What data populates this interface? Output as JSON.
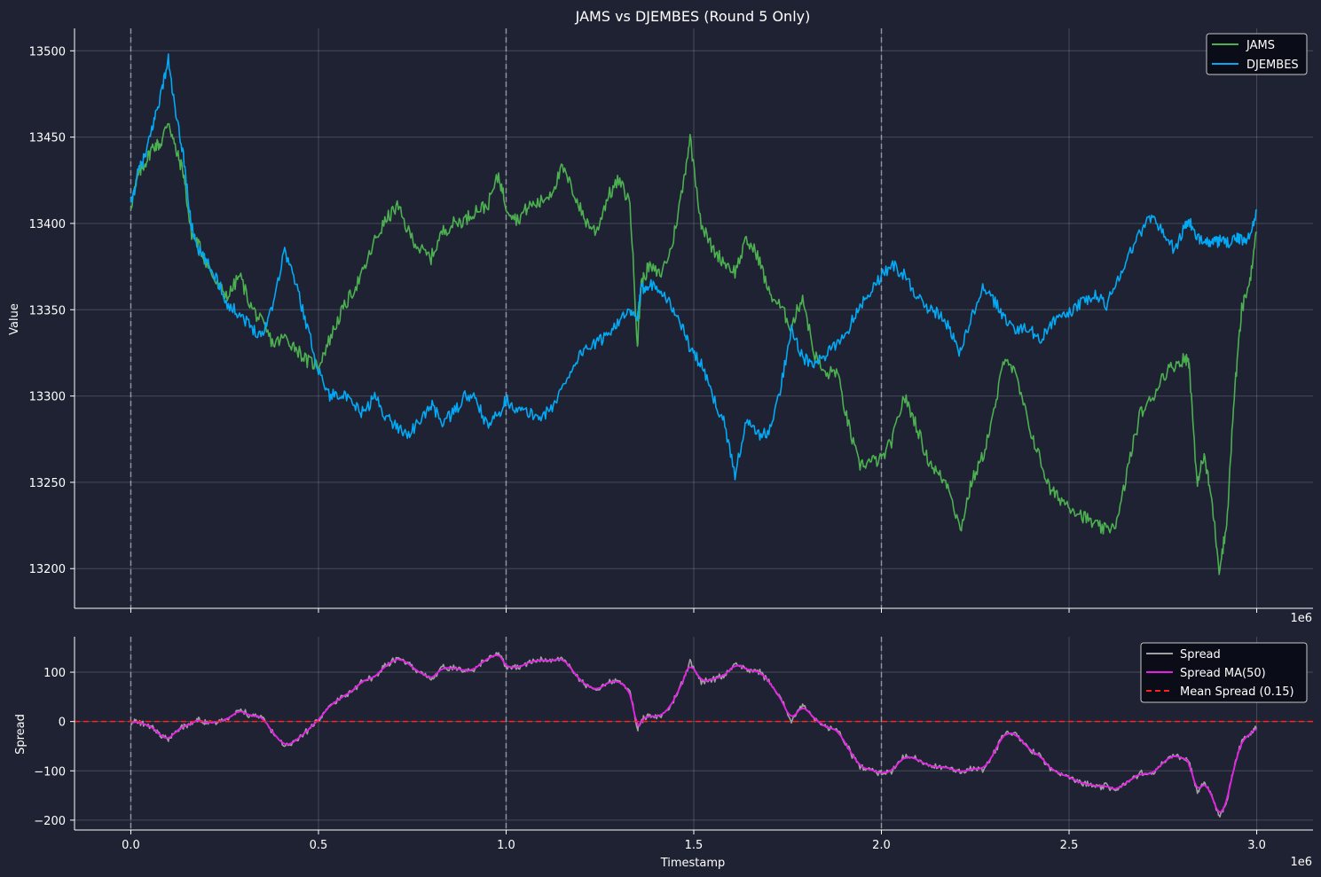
{
  "chart_data": [
    {
      "type": "line",
      "title": "JAMS vs DJEMBES (Round 5 Only)",
      "xlabel": "",
      "ylabel": "Value",
      "x_offset_label": "1e6",
      "xlim": [
        -0.15,
        3.15
      ],
      "ylim": [
        13177,
        13513
      ],
      "x_ticks": [
        0.0,
        0.5,
        1.0,
        1.5,
        2.0,
        2.5,
        3.0
      ],
      "y_ticks": [
        13200,
        13250,
        13300,
        13350,
        13400,
        13450,
        13500
      ],
      "y_tick_labels": [
        "13200",
        "13250",
        "13300",
        "13350",
        "13400",
        "13450",
        "13500"
      ],
      "vlines": [
        0.0,
        1.0,
        2.0
      ],
      "grid": true,
      "legend_position": "top-right",
      "x": [
        0.0,
        0.02,
        0.04,
        0.06,
        0.08,
        0.1,
        0.12,
        0.14,
        0.16,
        0.18,
        0.2,
        0.23,
        0.26,
        0.29,
        0.32,
        0.35,
        0.38,
        0.41,
        0.44,
        0.47,
        0.5,
        0.53,
        0.56,
        0.59,
        0.62,
        0.65,
        0.68,
        0.71,
        0.74,
        0.77,
        0.8,
        0.83,
        0.86,
        0.89,
        0.92,
        0.95,
        0.98,
        1.0,
        1.03,
        1.06,
        1.09,
        1.12,
        1.15,
        1.18,
        1.21,
        1.24,
        1.27,
        1.3,
        1.33,
        1.35,
        1.36,
        1.38,
        1.41,
        1.44,
        1.47,
        1.49,
        1.52,
        1.55,
        1.58,
        1.61,
        1.64,
        1.67,
        1.7,
        1.73,
        1.76,
        1.79,
        1.82,
        1.85,
        1.88,
        1.91,
        1.94,
        1.97,
        2.0,
        2.03,
        2.06,
        2.09,
        2.12,
        2.15,
        2.18,
        2.21,
        2.24,
        2.27,
        2.3,
        2.33,
        2.36,
        2.39,
        2.42,
        2.45,
        2.48,
        2.51,
        2.54,
        2.57,
        2.6,
        2.63,
        2.66,
        2.69,
        2.72,
        2.75,
        2.78,
        2.81,
        2.82,
        2.84,
        2.86,
        2.88,
        2.9,
        2.92,
        2.94,
        2.96,
        2.98,
        3.0
      ],
      "series": [
        {
          "name": "JAMS",
          "color": "#4caf50",
          "values": [
            13410,
            13428,
            13436,
            13445,
            13446,
            13460,
            13442,
            13430,
            13395,
            13388,
            13378,
            13364,
            13358,
            13370,
            13352,
            13342,
            13330,
            13334,
            13328,
            13320,
            13318,
            13333,
            13348,
            13360,
            13372,
            13390,
            13402,
            13410,
            13395,
            13385,
            13380,
            13395,
            13400,
            13402,
            13408,
            13410,
            13428,
            13410,
            13402,
            13410,
            13412,
            13418,
            13432,
            13418,
            13402,
            13395,
            13415,
            13425,
            13412,
            13330,
            13365,
            13375,
            13370,
            13385,
            13420,
            13450,
            13400,
            13385,
            13378,
            13372,
            13390,
            13382,
            13360,
            13352,
            13340,
            13358,
            13325,
            13312,
            13315,
            13285,
            13260,
            13262,
            13263,
            13275,
            13300,
            13285,
            13265,
            13255,
            13248,
            13222,
            13250,
            13265,
            13290,
            13325,
            13310,
            13285,
            13265,
            13245,
            13240,
            13235,
            13230,
            13225,
            13222,
            13228,
            13262,
            13290,
            13298,
            13312,
            13318,
            13322,
            13320,
            13250,
            13265,
            13240,
            13200,
            13225,
            13300,
            13350,
            13365,
            13395
          ]
        },
        {
          "name": "DJEMBES",
          "color": "#03a9f4",
          "values": [
            13410,
            13430,
            13440,
            13458,
            13475,
            13495,
            13462,
            13440,
            13400,
            13385,
            13378,
            13368,
            13352,
            13348,
            13340,
            13335,
            13355,
            13385,
            13365,
            13340,
            13315,
            13300,
            13302,
            13295,
            13290,
            13300,
            13288,
            13282,
            13278,
            13285,
            13295,
            13285,
            13290,
            13300,
            13298,
            13282,
            13290,
            13298,
            13292,
            13290,
            13288,
            13292,
            13305,
            13318,
            13328,
            13330,
            13336,
            13344,
            13348,
            13345,
            13362,
            13365,
            13363,
            13352,
            13340,
            13328,
            13318,
            13300,
            13285,
            13255,
            13285,
            13278,
            13278,
            13303,
            13340,
            13322,
            13318,
            13323,
            13330,
            13338,
            13352,
            13360,
            13370,
            13376,
            13370,
            13360,
            13350,
            13348,
            13340,
            13325,
            13345,
            13362,
            13355,
            13345,
            13338,
            13340,
            13332,
            13342,
            13345,
            13350,
            13355,
            13358,
            13353,
            13368,
            13382,
            13395,
            13405,
            13395,
            13385,
            13398,
            13402,
            13390,
            13392,
            13388,
            13390,
            13388,
            13392,
            13390,
            13392,
            13408
          ]
        }
      ]
    },
    {
      "type": "line",
      "title": "",
      "xlabel": "Timestamp",
      "ylabel": "Spread",
      "x_offset_label": "1e6",
      "xlim": [
        -0.15,
        3.15
      ],
      "ylim": [
        -220,
        172
      ],
      "x_ticks": [
        0.0,
        0.5,
        1.0,
        1.5,
        2.0,
        2.5,
        3.0
      ],
      "x_tick_labels": [
        "0.0",
        "0.5",
        "1.0",
        "1.5",
        "2.0",
        "2.5",
        "3.0"
      ],
      "y_ticks": [
        -200,
        -100,
        0,
        100
      ],
      "y_tick_labels": [
        "−200",
        "−100",
        "0",
        "100"
      ],
      "vlines": [
        0.0,
        1.0,
        2.0
      ],
      "hline": {
        "value": 0.15,
        "label": "Mean Spread (0.15)",
        "color": "#ff2020"
      },
      "grid": true,
      "legend_position": "top-right",
      "series_from": "top_diff",
      "series": [
        {
          "name": "Spread",
          "color": "#a0a0a0"
        },
        {
          "name": "Spread MA(50)",
          "color": "#e81ee8"
        }
      ]
    }
  ]
}
